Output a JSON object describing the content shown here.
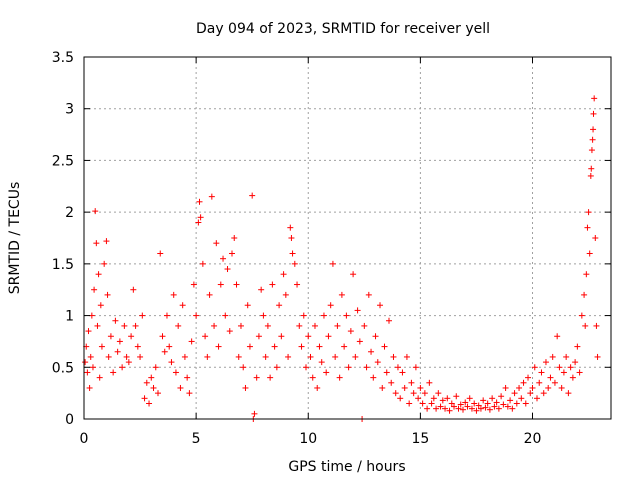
{
  "chart_data": {
    "type": "scatter",
    "title": "Day 094 of 2023, SRMTID for receiver yell",
    "xlabel": "GPS time / hours",
    "ylabel": "SRMTID / TECUs",
    "xlim": [
      0,
      23.5
    ],
    "ylim": [
      0,
      3.5
    ],
    "x_ticks": [
      0,
      5,
      10,
      15,
      20
    ],
    "x_tick_labels": [
      "0",
      "5",
      "10",
      "15",
      "20"
    ],
    "y_ticks": [
      0,
      0.5,
      1,
      1.5,
      2,
      2.5,
      3,
      3.5
    ],
    "y_tick_labels": [
      "0",
      "0.5",
      "1",
      "1.5",
      "2",
      "2.5",
      "3",
      "3.5"
    ],
    "grid": true,
    "marker": "plus",
    "color": "#ff0000",
    "series": [
      {
        "name": "SRMTID",
        "points": [
          [
            0.05,
            0.55
          ],
          [
            0.1,
            0.7
          ],
          [
            0.15,
            0.45
          ],
          [
            0.2,
            0.85
          ],
          [
            0.25,
            0.3
          ],
          [
            0.3,
            0.6
          ],
          [
            0.35,
            1.0
          ],
          [
            0.4,
            0.5
          ],
          [
            0.45,
            1.25
          ],
          [
            0.5,
            2.01
          ],
          [
            0.55,
            1.7
          ],
          [
            0.6,
            0.9
          ],
          [
            0.65,
            1.4
          ],
          [
            0.7,
            0.4
          ],
          [
            0.75,
            1.1
          ],
          [
            0.8,
            0.7
          ],
          [
            0.9,
            1.5
          ],
          [
            1.0,
            1.72
          ],
          [
            1.05,
            1.2
          ],
          [
            1.1,
            0.6
          ],
          [
            1.2,
            0.8
          ],
          [
            1.3,
            0.45
          ],
          [
            1.4,
            0.95
          ],
          [
            1.5,
            0.65
          ],
          [
            1.6,
            0.75
          ],
          [
            1.7,
            0.5
          ],
          [
            1.8,
            0.9
          ],
          [
            1.9,
            0.6
          ],
          [
            2.0,
            0.55
          ],
          [
            2.1,
            0.8
          ],
          [
            2.2,
            1.25
          ],
          [
            2.3,
            0.9
          ],
          [
            2.4,
            0.7
          ],
          [
            2.5,
            0.6
          ],
          [
            2.6,
            1.0
          ],
          [
            2.7,
            0.2
          ],
          [
            2.8,
            0.35
          ],
          [
            2.9,
            0.15
          ],
          [
            3.0,
            0.4
          ],
          [
            3.1,
            0.3
          ],
          [
            3.2,
            0.5
          ],
          [
            3.3,
            0.25
          ],
          [
            3.4,
            1.6
          ],
          [
            3.5,
            0.8
          ],
          [
            3.6,
            0.65
          ],
          [
            3.7,
            1.0
          ],
          [
            3.8,
            0.7
          ],
          [
            3.9,
            0.55
          ],
          [
            4.0,
            1.2
          ],
          [
            4.1,
            0.45
          ],
          [
            4.2,
            0.9
          ],
          [
            4.3,
            0.3
          ],
          [
            4.4,
            1.1
          ],
          [
            4.5,
            0.6
          ],
          [
            4.6,
            0.4
          ],
          [
            4.7,
            0.25
          ],
          [
            4.8,
            0.75
          ],
          [
            4.9,
            1.3
          ],
          [
            5.0,
            1.0
          ],
          [
            5.1,
            1.9
          ],
          [
            5.15,
            2.1
          ],
          [
            5.2,
            1.95
          ],
          [
            5.3,
            1.5
          ],
          [
            5.4,
            0.8
          ],
          [
            5.5,
            0.6
          ],
          [
            5.6,
            1.2
          ],
          [
            5.7,
            2.15
          ],
          [
            5.8,
            0.9
          ],
          [
            5.9,
            1.7
          ],
          [
            6.0,
            0.7
          ],
          [
            6.1,
            1.3
          ],
          [
            6.2,
            1.55
          ],
          [
            6.3,
            1.0
          ],
          [
            6.4,
            1.45
          ],
          [
            6.5,
            0.85
          ],
          [
            6.6,
            1.6
          ],
          [
            6.7,
            1.75
          ],
          [
            6.8,
            1.3
          ],
          [
            6.9,
            0.6
          ],
          [
            7.0,
            0.9
          ],
          [
            7.1,
            0.5
          ],
          [
            7.2,
            0.3
          ],
          [
            7.3,
            1.1
          ],
          [
            7.4,
            0.7
          ],
          [
            7.5,
            2.16
          ],
          [
            7.55,
            0.0
          ],
          [
            7.6,
            0.05
          ],
          [
            7.7,
            0.4
          ],
          [
            7.8,
            0.8
          ],
          [
            7.9,
            1.25
          ],
          [
            8.0,
            1.0
          ],
          [
            8.1,
            0.6
          ],
          [
            8.2,
            0.9
          ],
          [
            8.3,
            0.4
          ],
          [
            8.4,
            1.3
          ],
          [
            8.5,
            0.7
          ],
          [
            8.6,
            0.5
          ],
          [
            8.7,
            1.1
          ],
          [
            8.8,
            0.8
          ],
          [
            8.9,
            1.4
          ],
          [
            9.0,
            1.2
          ],
          [
            9.1,
            0.6
          ],
          [
            9.2,
            1.85
          ],
          [
            9.25,
            1.75
          ],
          [
            9.3,
            1.6
          ],
          [
            9.4,
            1.5
          ],
          [
            9.5,
            1.3
          ],
          [
            9.6,
            0.9
          ],
          [
            9.7,
            0.7
          ],
          [
            9.8,
            1.0
          ],
          [
            9.9,
            0.5
          ],
          [
            10.0,
            0.8
          ],
          [
            10.1,
            0.6
          ],
          [
            10.2,
            0.4
          ],
          [
            10.3,
            0.9
          ],
          [
            10.4,
            0.3
          ],
          [
            10.5,
            0.7
          ],
          [
            10.6,
            0.55
          ],
          [
            10.7,
            1.0
          ],
          [
            10.8,
            0.45
          ],
          [
            10.9,
            0.8
          ],
          [
            11.0,
            1.1
          ],
          [
            11.1,
            1.5
          ],
          [
            11.2,
            0.6
          ],
          [
            11.3,
            0.9
          ],
          [
            11.4,
            0.4
          ],
          [
            11.5,
            1.2
          ],
          [
            11.6,
            0.7
          ],
          [
            11.7,
            1.0
          ],
          [
            11.8,
            0.5
          ],
          [
            11.9,
            0.85
          ],
          [
            12.0,
            1.4
          ],
          [
            12.1,
            0.6
          ],
          [
            12.2,
            1.05
          ],
          [
            12.3,
            0.75
          ],
          [
            12.4,
            0.0
          ],
          [
            12.5,
            0.9
          ],
          [
            12.6,
            0.5
          ],
          [
            12.7,
            1.2
          ],
          [
            12.8,
            0.65
          ],
          [
            12.9,
            0.4
          ],
          [
            13.0,
            0.8
          ],
          [
            13.1,
            0.55
          ],
          [
            13.2,
            1.1
          ],
          [
            13.3,
            0.3
          ],
          [
            13.4,
            0.7
          ],
          [
            13.5,
            0.45
          ],
          [
            13.6,
            0.95
          ],
          [
            13.7,
            0.35
          ],
          [
            13.8,
            0.6
          ],
          [
            13.9,
            0.25
          ],
          [
            14.0,
            0.5
          ],
          [
            14.1,
            0.2
          ],
          [
            14.2,
            0.45
          ],
          [
            14.3,
            0.3
          ],
          [
            14.4,
            0.6
          ],
          [
            14.5,
            0.15
          ],
          [
            14.6,
            0.35
          ],
          [
            14.7,
            0.25
          ],
          [
            14.8,
            0.5
          ],
          [
            14.9,
            0.2
          ],
          [
            15.0,
            0.3
          ],
          [
            15.1,
            0.15
          ],
          [
            15.2,
            0.25
          ],
          [
            15.3,
            0.1
          ],
          [
            15.4,
            0.35
          ],
          [
            15.5,
            0.15
          ],
          [
            15.6,
            0.2
          ],
          [
            15.7,
            0.1
          ],
          [
            15.8,
            0.25
          ],
          [
            15.9,
            0.12
          ],
          [
            16.0,
            0.18
          ],
          [
            16.1,
            0.1
          ],
          [
            16.2,
            0.2
          ],
          [
            16.3,
            0.08
          ],
          [
            16.4,
            0.15
          ],
          [
            16.5,
            0.12
          ],
          [
            16.6,
            0.22
          ],
          [
            16.7,
            0.1
          ],
          [
            16.8,
            0.14
          ],
          [
            16.9,
            0.09
          ],
          [
            17.0,
            0.16
          ],
          [
            17.1,
            0.12
          ],
          [
            17.2,
            0.2
          ],
          [
            17.3,
            0.1
          ],
          [
            17.4,
            0.15
          ],
          [
            17.5,
            0.08
          ],
          [
            17.6,
            0.13
          ],
          [
            17.7,
            0.1
          ],
          [
            17.8,
            0.18
          ],
          [
            17.9,
            0.11
          ],
          [
            18.0,
            0.15
          ],
          [
            18.1,
            0.09
          ],
          [
            18.2,
            0.2
          ],
          [
            18.3,
            0.12
          ],
          [
            18.4,
            0.16
          ],
          [
            18.5,
            0.1
          ],
          [
            18.6,
            0.22
          ],
          [
            18.7,
            0.14
          ],
          [
            18.8,
            0.3
          ],
          [
            18.9,
            0.12
          ],
          [
            19.0,
            0.18
          ],
          [
            19.1,
            0.1
          ],
          [
            19.2,
            0.25
          ],
          [
            19.3,
            0.15
          ],
          [
            19.4,
            0.3
          ],
          [
            19.5,
            0.2
          ],
          [
            19.6,
            0.35
          ],
          [
            19.7,
            0.15
          ],
          [
            19.8,
            0.4
          ],
          [
            19.9,
            0.25
          ],
          [
            20.0,
            0.3
          ],
          [
            20.1,
            0.5
          ],
          [
            20.2,
            0.2
          ],
          [
            20.3,
            0.35
          ],
          [
            20.4,
            0.45
          ],
          [
            20.5,
            0.25
          ],
          [
            20.6,
            0.55
          ],
          [
            20.7,
            0.3
          ],
          [
            20.8,
            0.4
          ],
          [
            20.9,
            0.6
          ],
          [
            21.0,
            0.35
          ],
          [
            21.1,
            0.8
          ],
          [
            21.2,
            0.5
          ],
          [
            21.3,
            0.3
          ],
          [
            21.4,
            0.45
          ],
          [
            21.5,
            0.6
          ],
          [
            21.6,
            0.25
          ],
          [
            21.7,
            0.5
          ],
          [
            21.8,
            0.4
          ],
          [
            21.9,
            0.55
          ],
          [
            22.0,
            0.7
          ],
          [
            22.1,
            0.45
          ],
          [
            22.2,
            1.0
          ],
          [
            22.3,
            1.2
          ],
          [
            22.35,
            0.9
          ],
          [
            22.4,
            1.4
          ],
          [
            22.45,
            1.85
          ],
          [
            22.5,
            2.0
          ],
          [
            22.55,
            1.6
          ],
          [
            22.6,
            2.35
          ],
          [
            22.62,
            2.42
          ],
          [
            22.65,
            2.6
          ],
          [
            22.68,
            2.7
          ],
          [
            22.7,
            2.8
          ],
          [
            22.72,
            2.95
          ],
          [
            22.75,
            3.1
          ],
          [
            22.8,
            1.75
          ],
          [
            22.85,
            0.9
          ],
          [
            22.9,
            0.6
          ]
        ]
      }
    ]
  }
}
